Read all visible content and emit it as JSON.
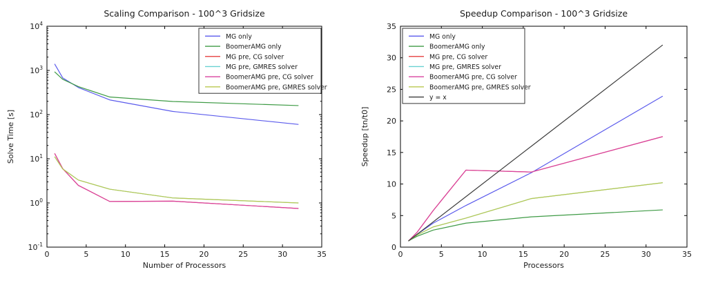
{
  "figure": {
    "background_color": "#ffffff",
    "axis_color": "#000000",
    "text_color": "#1a1a1a",
    "legend_border_color": "#333333",
    "legend_background": "#ffffff"
  },
  "chart_data": [
    {
      "id": "scaling",
      "type": "line",
      "title": "Scaling Comparison - 100^3 Gridsize",
      "xlabel": "Number of Processors",
      "ylabel": "Solve Time [s]",
      "xlim": [
        0,
        35
      ],
      "xticks": [
        0,
        5,
        10,
        15,
        20,
        25,
        30,
        35
      ],
      "yscale": "log",
      "ylim": [
        0.1,
        10000
      ],
      "ytick_exponents": [
        -1,
        0,
        1,
        2,
        3,
        4
      ],
      "grid": false,
      "legend_position": "top-right",
      "x": [
        1,
        2,
        4,
        8,
        16,
        32
      ],
      "series": [
        {
          "name": "MG only",
          "color": "#5a5aec",
          "values": [
            1380,
            680,
            410,
            215,
            118,
            60
          ]
        },
        {
          "name": "BoomerAMG only",
          "color": "#3d9a44",
          "values": [
            920,
            630,
            430,
            250,
            198,
            160
          ]
        },
        {
          "name": "MG pre, CG solver",
          "color": "#e84f4f",
          "values": [
            13,
            6,
            2.5,
            1.08,
            1.1,
            0.75
          ]
        },
        {
          "name": "MG pre, GMRES solver",
          "color": "#68d1d1",
          "values": [
            11,
            5.9,
            3.3,
            2.05,
            1.3,
            1.0
          ]
        },
        {
          "name": "BoomerAMG pre, CG solver",
          "color": "#d8429f",
          "values": [
            13,
            6,
            2.5,
            1.08,
            1.1,
            0.75
          ]
        },
        {
          "name": "BoomerAMG pre, GMRES solver",
          "color": "#b8c74e",
          "values": [
            11,
            5.9,
            3.3,
            2.05,
            1.3,
            1.0
          ]
        }
      ]
    },
    {
      "id": "speedup",
      "type": "line",
      "title": "Speedup Comparison - 100^3 Gridsize",
      "xlabel": "Processors",
      "ylabel": "Speedup [tn/t0]",
      "xlim": [
        0,
        35
      ],
      "xticks": [
        0,
        5,
        10,
        15,
        20,
        25,
        30,
        35
      ],
      "yscale": "linear",
      "ylim": [
        0,
        35
      ],
      "yticks": [
        0,
        5,
        10,
        15,
        20,
        25,
        30,
        35
      ],
      "grid": false,
      "legend_position": "top-left",
      "x": [
        1,
        2,
        4,
        8,
        16,
        32
      ],
      "series": [
        {
          "name": "MG only",
          "color": "#5a5aec",
          "values": [
            1,
            2.0,
            3.8,
            6.6,
            11.8,
            23.9
          ]
        },
        {
          "name": "BoomerAMG only",
          "color": "#3d9a44",
          "values": [
            1,
            1.7,
            2.7,
            3.8,
            4.8,
            5.9
          ]
        },
        {
          "name": "MG pre, CG solver",
          "color": "#e84f4f",
          "values": [
            1,
            2.3,
            5.8,
            12.2,
            11.9,
            17.5
          ]
        },
        {
          "name": "MG pre, GMRES solver",
          "color": "#68d1d1",
          "values": [
            1,
            1.9,
            3.2,
            4.6,
            7.7,
            10.2
          ]
        },
        {
          "name": "BoomerAMG pre, CG solver",
          "color": "#d8429f",
          "values": [
            1,
            2.3,
            5.8,
            12.2,
            11.9,
            17.5
          ]
        },
        {
          "name": "BoomerAMG pre, GMRES solver",
          "color": "#b8c74e",
          "values": [
            1,
            1.9,
            3.2,
            4.6,
            7.7,
            10.2
          ]
        },
        {
          "name": "y = x",
          "color": "#3c3c3c",
          "values": [
            1,
            2,
            4,
            8,
            16,
            32
          ]
        }
      ]
    }
  ]
}
